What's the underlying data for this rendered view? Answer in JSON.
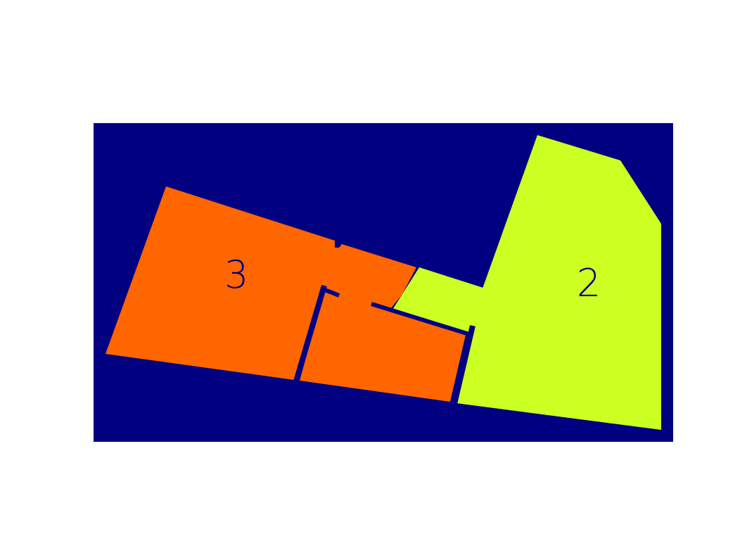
{
  "colors": {
    "page_background": "#ffffff",
    "canvas_background": "#000080",
    "wall": "#000080",
    "region_2": "#ccff22",
    "region_3": "#ff6600",
    "label_text": "#000080"
  },
  "regions": [
    {
      "id": "region-3",
      "label": "3",
      "color_key": "region_3"
    },
    {
      "id": "region-2",
      "label": "2",
      "color_key": "region_2"
    }
  ]
}
